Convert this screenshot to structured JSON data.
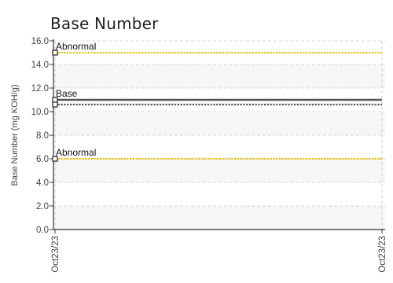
{
  "chart_data": {
    "type": "line",
    "title": "Base Number",
    "ylabel": "Base Number (mg KOH/g)",
    "xlabel": "",
    "ylim": [
      0,
      16
    ],
    "y_ticks": [
      "0.0",
      "2.0",
      "4.0",
      "6.0",
      "8.0",
      "10.0",
      "12.0",
      "14.0",
      "16.0"
    ],
    "x_ticks": [
      "Oct23/23",
      "Oct23/23"
    ],
    "grid": true,
    "reference_lines": [
      {
        "label": "Abnormal",
        "value": 15.0,
        "color": "#e8c20c",
        "style": "dotted"
      },
      {
        "label": "Base",
        "value": 11.0,
        "color": "#555555",
        "style": "solid"
      },
      {
        "label": "",
        "value": 10.6,
        "color": "#555555",
        "style": "dotted"
      },
      {
        "label": "Abnormal",
        "value": 6.0,
        "color": "#e8c20c",
        "style": "dotted"
      }
    ]
  }
}
